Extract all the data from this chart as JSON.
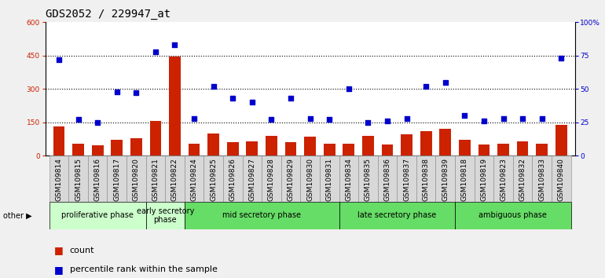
{
  "title": "GDS2052 / 229947_at",
  "samples": [
    "GSM109814",
    "GSM109815",
    "GSM109816",
    "GSM109817",
    "GSM109820",
    "GSM109821",
    "GSM109822",
    "GSM109824",
    "GSM109825",
    "GSM109826",
    "GSM109827",
    "GSM109828",
    "GSM109829",
    "GSM109830",
    "GSM109831",
    "GSM109834",
    "GSM109835",
    "GSM109836",
    "GSM109837",
    "GSM109838",
    "GSM109839",
    "GSM109818",
    "GSM109819",
    "GSM109823",
    "GSM109832",
    "GSM109833",
    "GSM109840"
  ],
  "counts": [
    130,
    55,
    45,
    70,
    80,
    155,
    445,
    55,
    100,
    60,
    65,
    90,
    60,
    85,
    55,
    55,
    90,
    50,
    95,
    110,
    120,
    70,
    50,
    55,
    65,
    55,
    140
  ],
  "percentiles": [
    72,
    27,
    25,
    48,
    47,
    78,
    83,
    28,
    52,
    43,
    40,
    27,
    43,
    28,
    27,
    50,
    25,
    26,
    28,
    52,
    55,
    30,
    26,
    28,
    28,
    28,
    73
  ],
  "phase_configs": [
    {
      "label": "proliferative phase",
      "start": 0,
      "end": 5,
      "color": "#ccffcc"
    },
    {
      "label": "early secretory\nphase",
      "start": 5,
      "end": 7,
      "color": "#ccffcc"
    },
    {
      "label": "mid secretory phase",
      "start": 7,
      "end": 15,
      "color": "#66dd66"
    },
    {
      "label": "late secretory phase",
      "start": 15,
      "end": 21,
      "color": "#66dd66"
    },
    {
      "label": "ambiguous phase",
      "start": 21,
      "end": 27,
      "color": "#66dd66"
    }
  ],
  "left_ylim": [
    0,
    600
  ],
  "right_ylim": [
    0,
    100
  ],
  "left_yticks": [
    0,
    150,
    300,
    450,
    600
  ],
  "right_yticks": [
    0,
    25,
    50,
    75,
    100
  ],
  "right_yticklabels": [
    "0",
    "25",
    "50",
    "75",
    "100%"
  ],
  "bar_color": "#cc2200",
  "dot_color": "#0000cc",
  "background_color": "#f0f0f0",
  "plot_bg": "#ffffff",
  "title_fontsize": 10,
  "tick_fontsize": 6.5,
  "phase_fontsize": 7,
  "legend_fontsize": 8
}
